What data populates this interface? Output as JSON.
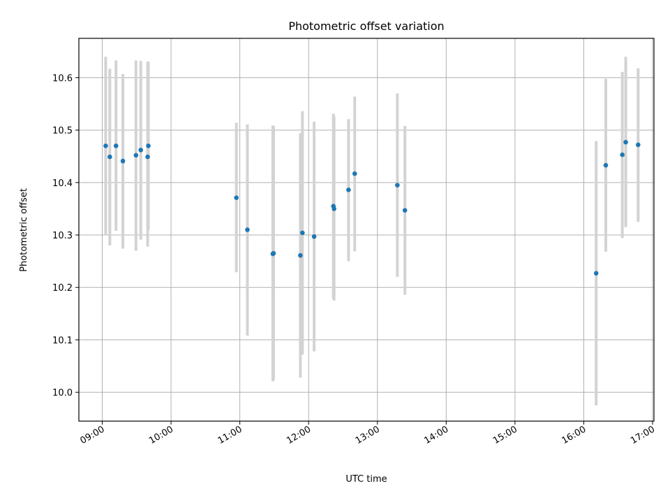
{
  "chart_data": {
    "type": "scatter",
    "title": "Photometric offset variation",
    "xlabel": "UTC time",
    "ylabel": "Photometric offset",
    "x_unit": "hours UTC",
    "xlim": [
      8.66,
      17.02
    ],
    "ylim": [
      9.945,
      10.675
    ],
    "x_ticks": [
      {
        "value": 9,
        "label": "09:00"
      },
      {
        "value": 10,
        "label": "10:00"
      },
      {
        "value": 11,
        "label": "11:00"
      },
      {
        "value": 12,
        "label": "12:00"
      },
      {
        "value": 13,
        "label": "13:00"
      },
      {
        "value": 14,
        "label": "14:00"
      },
      {
        "value": 15,
        "label": "15:00"
      },
      {
        "value": 16,
        "label": "16:00"
      },
      {
        "value": 17,
        "label": "17:00"
      }
    ],
    "y_ticks": [
      {
        "value": 10.0,
        "label": "10.0"
      },
      {
        "value": 10.1,
        "label": "10.1"
      },
      {
        "value": 10.2,
        "label": "10.2"
      },
      {
        "value": 10.3,
        "label": "10.3"
      },
      {
        "value": 10.4,
        "label": "10.4"
      },
      {
        "value": 10.5,
        "label": "10.5"
      },
      {
        "value": 10.6,
        "label": "10.6"
      }
    ],
    "grid": true,
    "marker_color": "#1f77b4",
    "errorbar_color": "#d3d3d3",
    "points": [
      {
        "x": 9.05,
        "y": 10.47,
        "ylow": 10.3,
        "yhigh": 10.64
      },
      {
        "x": 9.11,
        "y": 10.449,
        "ylow": 10.28,
        "yhigh": 10.617
      },
      {
        "x": 9.2,
        "y": 10.47,
        "ylow": 10.308,
        "yhigh": 10.633
      },
      {
        "x": 9.3,
        "y": 10.441,
        "ylow": 10.274,
        "yhigh": 10.607
      },
      {
        "x": 9.49,
        "y": 10.452,
        "ylow": 10.27,
        "yhigh": 10.633
      },
      {
        "x": 9.56,
        "y": 10.462,
        "ylow": 10.291,
        "yhigh": 10.632
      },
      {
        "x": 9.66,
        "y": 10.449,
        "ylow": 10.278,
        "yhigh": 10.631
      },
      {
        "x": 9.67,
        "y": 10.47,
        "ylow": 10.31,
        "yhigh": 10.63
      },
      {
        "x": 10.95,
        "y": 10.371,
        "ylow": 10.229,
        "yhigh": 10.514
      },
      {
        "x": 11.11,
        "y": 10.31,
        "ylow": 10.108,
        "yhigh": 10.511
      },
      {
        "x": 11.48,
        "y": 10.264,
        "ylow": 10.021,
        "yhigh": 10.509
      },
      {
        "x": 11.49,
        "y": 10.265,
        "ylow": 10.024,
        "yhigh": 10.507
      },
      {
        "x": 11.88,
        "y": 10.261,
        "ylow": 10.028,
        "yhigh": 10.494
      },
      {
        "x": 11.91,
        "y": 10.304,
        "ylow": 10.072,
        "yhigh": 10.536
      },
      {
        "x": 12.08,
        "y": 10.297,
        "ylow": 10.078,
        "yhigh": 10.516
      },
      {
        "x": 12.36,
        "y": 10.355,
        "ylow": 10.178,
        "yhigh": 10.531
      },
      {
        "x": 12.37,
        "y": 10.35,
        "ylow": 10.175,
        "yhigh": 10.526
      },
      {
        "x": 12.58,
        "y": 10.386,
        "ylow": 10.25,
        "yhigh": 10.521
      },
      {
        "x": 12.67,
        "y": 10.417,
        "ylow": 10.269,
        "yhigh": 10.564
      },
      {
        "x": 13.29,
        "y": 10.395,
        "ylow": 10.22,
        "yhigh": 10.57
      },
      {
        "x": 13.4,
        "y": 10.347,
        "ylow": 10.186,
        "yhigh": 10.508
      },
      {
        "x": 16.18,
        "y": 10.227,
        "ylow": 9.975,
        "yhigh": 10.479
      },
      {
        "x": 16.32,
        "y": 10.433,
        "ylow": 10.268,
        "yhigh": 10.598
      },
      {
        "x": 16.56,
        "y": 10.453,
        "ylow": 10.294,
        "yhigh": 10.611
      },
      {
        "x": 16.61,
        "y": 10.477,
        "ylow": 10.315,
        "yhigh": 10.64
      },
      {
        "x": 16.79,
        "y": 10.472,
        "ylow": 10.325,
        "yhigh": 10.618
      }
    ]
  }
}
